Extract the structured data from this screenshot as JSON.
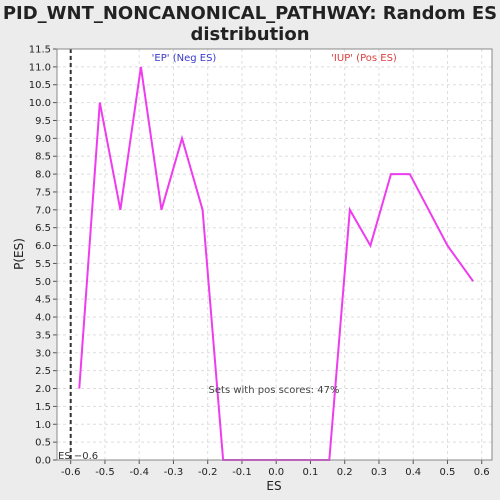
{
  "chart_data": {
    "type": "line",
    "title_line1": "PID_WNT_NONCANONICAL_PATHWAY: Random ES",
    "title_line2": "distribution",
    "xlabel": "ES",
    "ylabel": "P(ES)",
    "xlim": [
      -0.64,
      0.63
    ],
    "ylim": [
      0.0,
      11.5
    ],
    "x_ticks": [
      "-0.6",
      "-0.5",
      "-0.4",
      "-0.3",
      "-0.2",
      "-0.1",
      "0.0",
      "0.1",
      "0.2",
      "0.3",
      "0.4",
      "0.5",
      "0.6"
    ],
    "y_ticks": [
      "0.0",
      "0.5",
      "1.0",
      "1.5",
      "2.0",
      "2.5",
      "3.0",
      "3.5",
      "4.0",
      "4.5",
      "5.0",
      "5.5",
      "6.0",
      "6.5",
      "7.0",
      "7.5",
      "8.0",
      "8.5",
      "9.0",
      "9.5",
      "10.0",
      "10.5",
      "11.0",
      "11.5"
    ],
    "series": [
      {
        "color": "#ee3cee",
        "x": [
          -0.575,
          -0.515,
          -0.455,
          -0.395,
          -0.335,
          -0.275,
          -0.215,
          -0.155,
          -0.1,
          0.0,
          0.1,
          0.155,
          0.215,
          0.275,
          0.335,
          0.39,
          0.5,
          0.575
        ],
        "y": [
          2.0,
          10.0,
          7.0,
          11.0,
          7.0,
          9.0,
          7.0,
          0.0,
          0.0,
          0.0,
          0.0,
          0.0,
          7.0,
          6.0,
          8.0,
          8.0,
          6.0,
          5.0
        ]
      }
    ],
    "actual_es": {
      "x": -0.6,
      "label": "ES −0.6",
      "color": "#333333"
    },
    "grid": true,
    "annotations": {
      "neg": {
        "text": "'EP' (Neg ES)",
        "color": "#3a3acc"
      },
      "pos": {
        "text": "'IUP' (Pos ES)",
        "color": "#d84040"
      },
      "pos_scores": {
        "text": "Sets with pos scores: 47%",
        "color": "#444444"
      }
    }
  }
}
